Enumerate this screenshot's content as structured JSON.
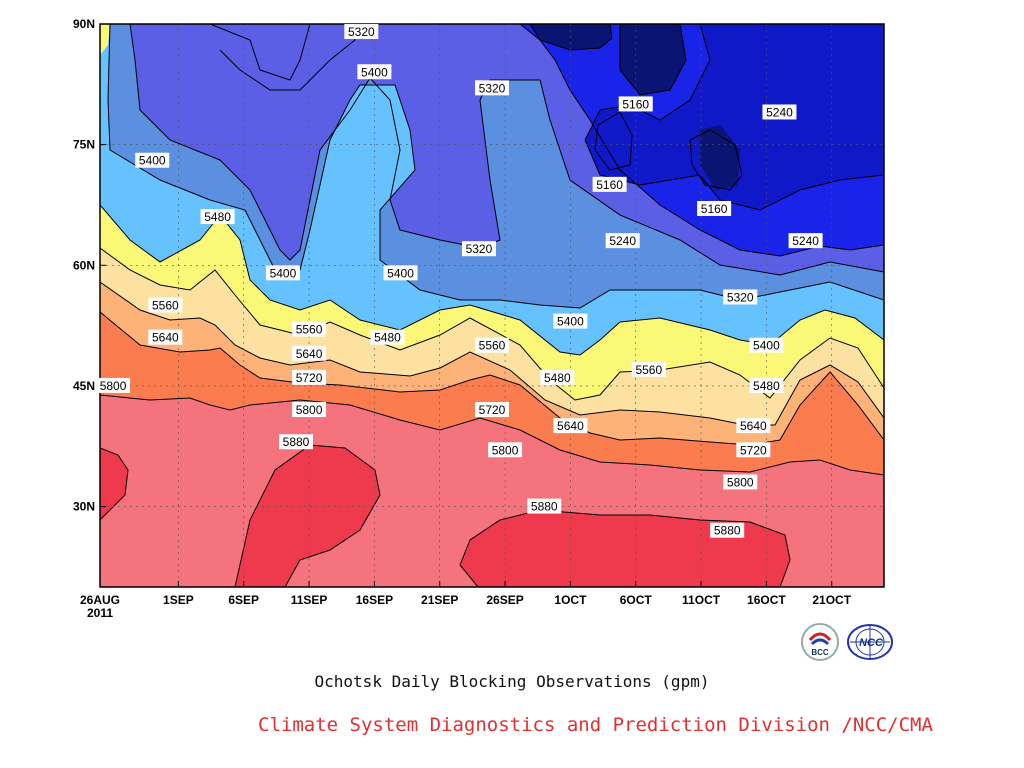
{
  "chart_data": {
    "type": "heatmap",
    "title": "Ochotsk Daily Blocking Observations (gpm)",
    "x_tick_labels": [
      "26AUG\n2011",
      "1SEP",
      "6SEP",
      "11SEP",
      "16SEP",
      "21SEP",
      "26SEP",
      "1OCT",
      "6OCT",
      "11OCT",
      "16OCT",
      "21OCT"
    ],
    "y_tick_labels": [
      "90N",
      "75N",
      "60N",
      "45N",
      "30N"
    ],
    "x_days": [
      0,
      6,
      11,
      16,
      21,
      26,
      31,
      36,
      41,
      46,
      51,
      56
    ],
    "y_ticks": [
      90,
      75,
      60,
      45,
      30
    ],
    "xlim": [
      0,
      60
    ],
    "ylim": [
      20,
      90
    ],
    "contour_levels": [
      5160,
      5240,
      5320,
      5400,
      5480,
      5560,
      5640,
      5720,
      5800,
      5880
    ],
    "fill_colors": {
      "lt5160": "#0a1473",
      "5160": "#1019c8",
      "5240": "#1a24e8",
      "5320": "#5a5fe6",
      "5400": "#5b8fe0",
      "5480": "#65c2ff",
      "5560": "#fbf877",
      "5640": "#fde1a0",
      "5720": "#fdb277",
      "5800": "#fb7d4f",
      "5880": "#f5737c",
      "gt5880": "#ee3a4c"
    },
    "contour_labels": [
      {
        "text": "5320",
        "day": 20,
        "lat": 89
      },
      {
        "text": "5400",
        "day": 21,
        "lat": 84
      },
      {
        "text": "5320",
        "day": 30,
        "lat": 82
      },
      {
        "text": "5160",
        "day": 41,
        "lat": 80
      },
      {
        "text": "5240",
        "day": 52,
        "lat": 79
      },
      {
        "text": "5400",
        "day": 4,
        "lat": 73
      },
      {
        "text": "5160",
        "day": 39,
        "lat": 70
      },
      {
        "text": "5160",
        "day": 47,
        "lat": 67
      },
      {
        "text": "5480",
        "day": 9,
        "lat": 66
      },
      {
        "text": "5240",
        "day": 40,
        "lat": 63
      },
      {
        "text": "5320",
        "day": 29,
        "lat": 62
      },
      {
        "text": "5240",
        "day": 54,
        "lat": 63
      },
      {
        "text": "5400",
        "day": 14,
        "lat": 59
      },
      {
        "text": "5400",
        "day": 23,
        "lat": 59
      },
      {
        "text": "5560",
        "day": 5,
        "lat": 55
      },
      {
        "text": "5320",
        "day": 49,
        "lat": 56
      },
      {
        "text": "5400",
        "day": 36,
        "lat": 53
      },
      {
        "text": "5560",
        "day": 16,
        "lat": 52
      },
      {
        "text": "5640",
        "day": 5,
        "lat": 51
      },
      {
        "text": "5480",
        "day": 22,
        "lat": 51
      },
      {
        "text": "5560",
        "day": 30,
        "lat": 50
      },
      {
        "text": "5400",
        "day": 51,
        "lat": 50
      },
      {
        "text": "5640",
        "day": 16,
        "lat": 49
      },
      {
        "text": "5560",
        "day": 42,
        "lat": 47
      },
      {
        "text": "5480",
        "day": 35,
        "lat": 46
      },
      {
        "text": "5720",
        "day": 16,
        "lat": 46
      },
      {
        "text": "5800",
        "day": 1,
        "lat": 45
      },
      {
        "text": "5480",
        "day": 51,
        "lat": 45
      },
      {
        "text": "5720",
        "day": 30,
        "lat": 42
      },
      {
        "text": "5800",
        "day": 16,
        "lat": 42
      },
      {
        "text": "5640",
        "day": 36,
        "lat": 40
      },
      {
        "text": "5640",
        "day": 50,
        "lat": 40
      },
      {
        "text": "5880",
        "day": 15,
        "lat": 38
      },
      {
        "text": "5720",
        "day": 50,
        "lat": 37
      },
      {
        "text": "5800",
        "day": 31,
        "lat": 37
      },
      {
        "text": "5800",
        "day": 49,
        "lat": 33
      },
      {
        "text": "5880",
        "day": 34,
        "lat": 30
      },
      {
        "text": "5880",
        "day": 48,
        "lat": 27
      }
    ]
  },
  "caption": {
    "title": "Ochotsk Daily Blocking Observations (gpm)",
    "organization": "Climate System Diagnostics and Prediction Division /NCC/CMA"
  },
  "logos": [
    {
      "name": "bcc-logo",
      "text": "BCC"
    },
    {
      "name": "ncc-logo",
      "text": "NCC"
    }
  ]
}
